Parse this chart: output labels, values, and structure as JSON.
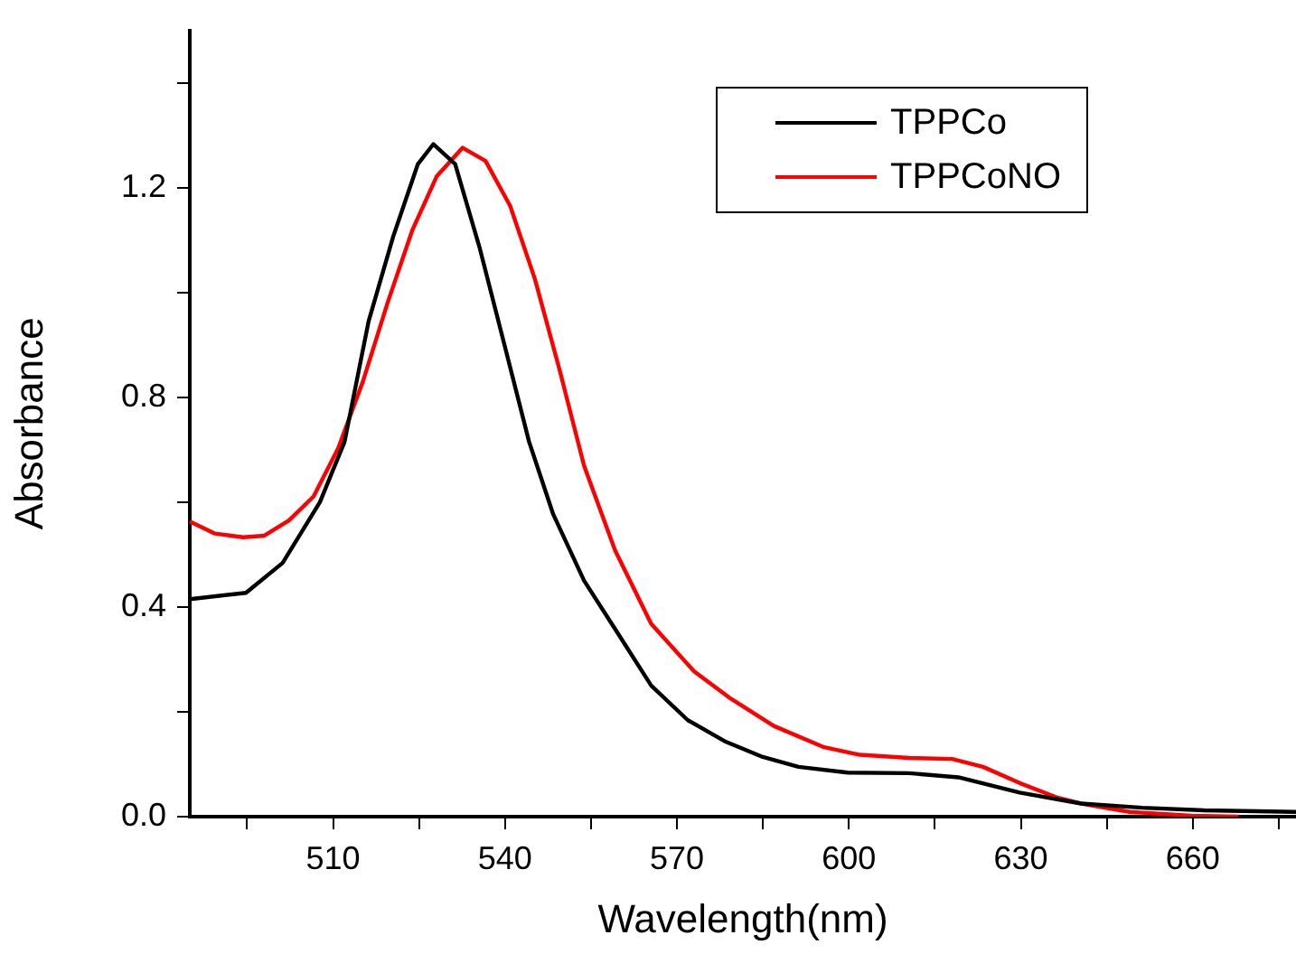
{
  "chart_data": {
    "type": "line",
    "xlabel": "Wavelength(nm)",
    "ylabel": "Absorbance",
    "xlim": [
      485,
      678
    ],
    "ylim": [
      0,
      1.5
    ],
    "xticks": [
      {
        "value": 495,
        "label": null
      },
      510,
      {
        "value": 525,
        "label": null
      },
      540,
      {
        "value": 555,
        "label": null
      },
      570,
      {
        "value": 585,
        "label": null
      },
      600,
      {
        "value": 615,
        "label": null
      },
      630,
      {
        "value": 645,
        "label": null
      },
      660,
      {
        "value": 675,
        "label": null
      }
    ],
    "yticks": [
      {
        "value": 0,
        "label": "0.0"
      },
      {
        "value": 0.2,
        "label": null
      },
      0.4,
      {
        "value": 0.6,
        "label": null
      },
      0.8,
      {
        "value": 1.0,
        "label": null
      },
      1.2,
      {
        "value": 1.4,
        "label": null
      }
    ],
    "grid": false,
    "legend": "top right",
    "marker": "none",
    "line_style": "solid",
    "series": [
      {
        "name": "TPPCo",
        "color": "#000000",
        "x": [
          485,
          494.8,
          501.2,
          507.7,
          512,
          516.2,
          520.5,
          524.8,
          527.5,
          531.3,
          535.6,
          539.9,
          544.2,
          548.4,
          553.8,
          559.2,
          565.5,
          571.9,
          578.3,
          584.7,
          591.2,
          599.8,
          610.5,
          619.1,
          629.8,
          640.5,
          651.2,
          662,
          678
        ],
        "values": [
          0.415,
          0.427,
          0.484,
          0.6,
          0.715,
          0.945,
          1.107,
          1.245,
          1.283,
          1.245,
          1.084,
          0.9,
          0.715,
          0.577,
          0.45,
          0.358,
          0.25,
          0.184,
          0.144,
          0.115,
          0.095,
          0.084,
          0.083,
          0.075,
          0.046,
          0.025,
          0.017,
          0.012,
          0.009
        ]
      },
      {
        "name": "TPPCoNO",
        "color": "#ff0000",
        "x": [
          485,
          489.4,
          494.3,
          498,
          502.3,
          506.6,
          510.9,
          515.2,
          519.5,
          523.8,
          528.1,
          532.6,
          536.6,
          540.9,
          545.2,
          549.5,
          553.8,
          559.2,
          565.5,
          573,
          579.4,
          586.9,
          595.5,
          601.9,
          610.5,
          618,
          623.4,
          629.8,
          636.2,
          640.5,
          649,
          659.7,
          668
        ],
        "values": [
          0.563,
          0.54,
          0.533,
          0.536,
          0.565,
          0.611,
          0.703,
          0.83,
          0.98,
          1.118,
          1.222,
          1.276,
          1.251,
          1.165,
          1.026,
          0.853,
          0.669,
          0.508,
          0.368,
          0.277,
          0.225,
          0.173,
          0.133,
          0.118,
          0.112,
          0.11,
          0.095,
          0.064,
          0.037,
          0.025,
          0.009,
          0.002,
          0.0
        ]
      }
    ]
  }
}
